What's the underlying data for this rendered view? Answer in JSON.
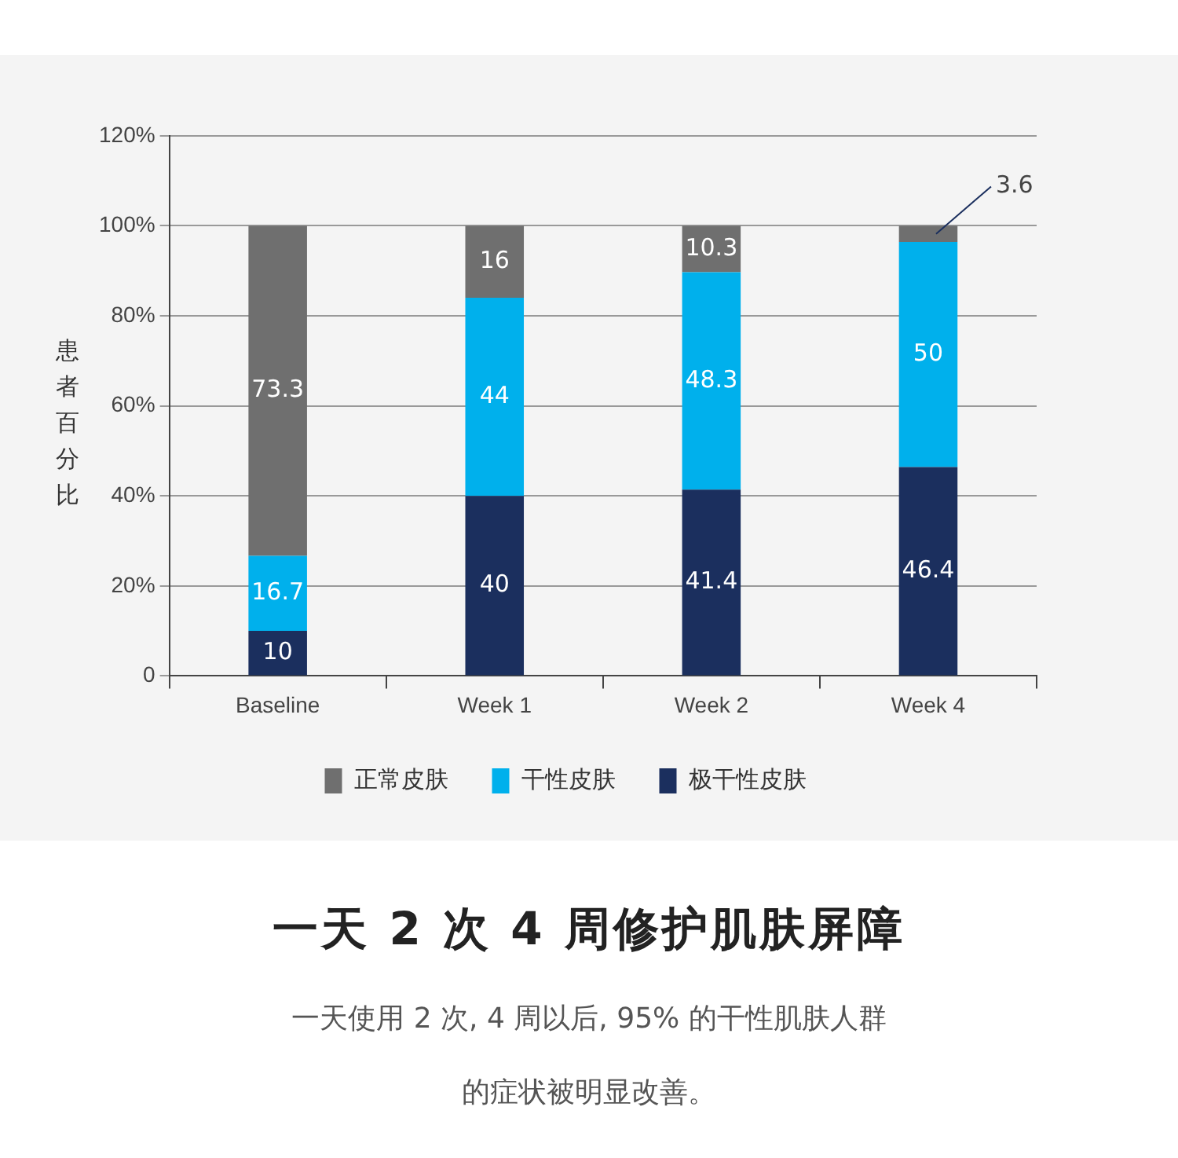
{
  "chart_data": {
    "type": "bar",
    "title": "一天 2 次 4 周修护肌肤屏障",
    "subtitle": "一天使用 2 次, 4 周以后, 95% 的干性肌肤人群的症状被明显改善。",
    "ylabel": "患者百分比",
    "categories": [
      "Baseline",
      "Week 1",
      "Week 2",
      "Week 4"
    ],
    "series": [
      {
        "name": "极干性皮肤",
        "color": "#1b2f5e",
        "values": [
          10,
          40,
          41.4,
          46.4
        ]
      },
      {
        "name": "干性皮肤",
        "color": "#00b0ec",
        "values": [
          16.7,
          44,
          48.3,
          50
        ]
      },
      {
        "name": "正常皮肤",
        "color": "#6f6f6f",
        "values": [
          73.3,
          16,
          10.3,
          3.6
        ]
      }
    ],
    "stacked": true,
    "data_labels": true,
    "ylim": [
      0,
      120
    ],
    "yticks": [
      0,
      {
        "value": 20,
        "label": "20%"
      },
      {
        "value": 40,
        "label": "40%"
      },
      {
        "value": 60,
        "label": "60%"
      },
      {
        "value": 80,
        "label": "80%"
      },
      {
        "value": 100,
        "label": "100%"
      },
      {
        "value": 120,
        "label": "120%"
      }
    ],
    "grid": "y",
    "legend": "bottom"
  }
}
